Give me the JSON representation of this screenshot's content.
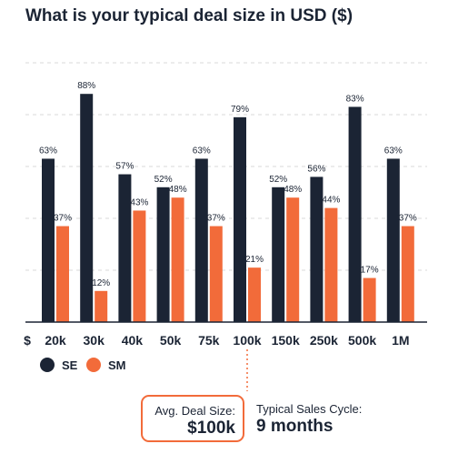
{
  "chart_data": {
    "type": "bar",
    "title": "What is your typical deal size in USD ($)",
    "axis_prefix": "$",
    "categories": [
      "20k",
      "30k",
      "40k",
      "50k",
      "75k",
      "100k",
      "150k",
      "250k",
      "500k",
      "1M"
    ],
    "series": [
      {
        "name": "SE",
        "color": "#1b2434",
        "values": [
          63,
          88,
          57,
          52,
          63,
          79,
          52,
          56,
          83,
          63
        ]
      },
      {
        "name": "SM",
        "color": "#f26b3a",
        "values": [
          37,
          12,
          43,
          48,
          37,
          21,
          48,
          44,
          17,
          37
        ]
      }
    ],
    "ylim": [
      0,
      100
    ],
    "value_suffix": "%",
    "grid": true,
    "legend": "bottom-left"
  },
  "highlight_category": "100k",
  "summary": {
    "avg_label": "Avg. Deal Size:",
    "avg_value": "$100k",
    "cycle_label": "Typical Sales Cycle:",
    "cycle_value": "9 months"
  },
  "colors": {
    "primary": "#1b2434",
    "accent": "#f26b3a",
    "grid": "#d9d9d9"
  }
}
